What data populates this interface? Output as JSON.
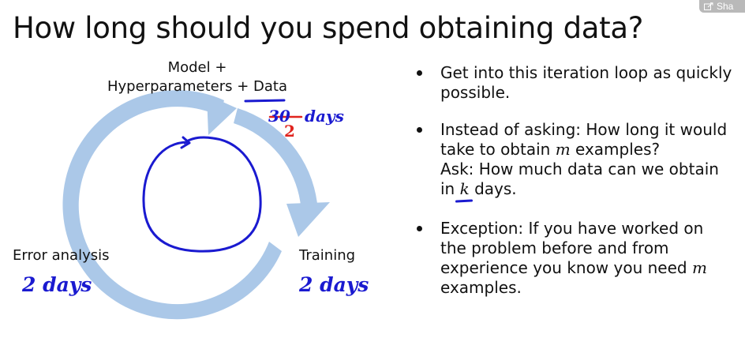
{
  "title": "How long should you spend obtaining data?",
  "share_label": "Sha",
  "diagram": {
    "top_label_line1": "Model +",
    "top_label_line2_prefix": "Hyperparameters + ",
    "top_label_line2_data": "Data",
    "left_label": "Error analysis",
    "right_label": "Training",
    "annotation_struck": "30",
    "annotation_replacement": "2",
    "annotation_top_unit": "days",
    "annotation_left": "2 days",
    "annotation_right": "2 days"
  },
  "bullets": {
    "b1": "Get into this iteration loop as quickly possible.",
    "b2_pre": "Instead of asking: How long it would take to obtain ",
    "b2_m": "m",
    "b2_post": " examples?",
    "b2_ask_pre": "Ask: How much data can we obtain in ",
    "b2_k": "k",
    "b2_ask_post": " days.",
    "b3_pre": "Exception: If you have worked on the problem before and from experience you know you need ",
    "b3_m": "m",
    "b3_post": " examples."
  },
  "colors": {
    "arrow_fill": "#abc8e8",
    "ink_blue": "#1a1ad0",
    "ink_red": "#e0241e"
  }
}
